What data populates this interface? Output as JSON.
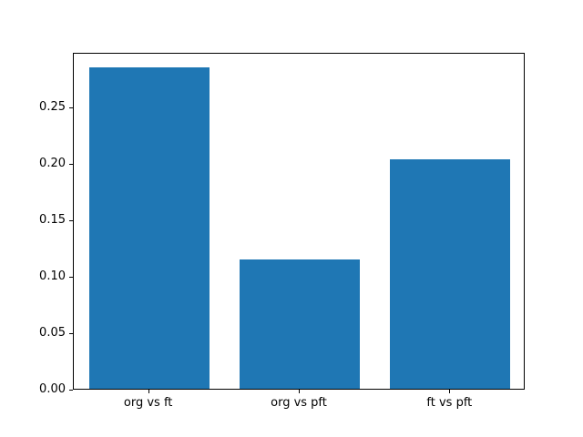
{
  "chart_data": {
    "type": "bar",
    "categories": [
      "org vs ft",
      "org vs pft",
      "ft vs pft"
    ],
    "values": [
      0.284,
      0.114,
      0.203
    ],
    "title": "",
    "xlabel": "",
    "ylabel": "",
    "ylim": [
      0,
      0.298
    ],
    "yticks": [
      0.0,
      0.05,
      0.1,
      0.15,
      0.2,
      0.25
    ],
    "ytick_format_decimals": 2,
    "bar_color": "#1f77b4",
    "axis_color": "#000000",
    "background_color": "#ffffff",
    "grid": false,
    "legend": null,
    "bar_width_fraction": 0.8
  }
}
